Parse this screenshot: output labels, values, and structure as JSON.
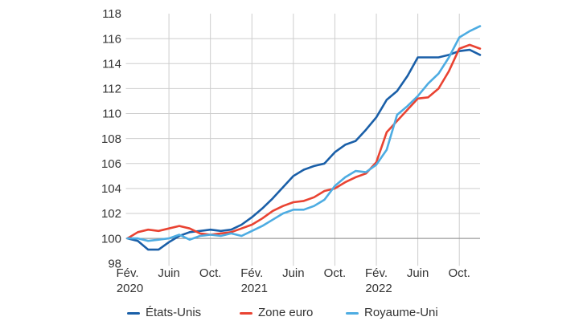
{
  "chart_data": {
    "type": "line",
    "title": "",
    "xlabel": "",
    "ylabel": "",
    "ylim": [
      98,
      118
    ],
    "y_ticks": [
      98,
      100,
      102,
      104,
      106,
      108,
      110,
      112,
      114,
      116,
      118
    ],
    "y_gridlines": [
      100,
      102,
      104,
      106,
      108,
      110,
      112,
      114,
      116
    ],
    "baseline_value": 100,
    "grid": true,
    "legend_position": "bottom",
    "x": [
      "2020-02",
      "2020-03",
      "2020-04",
      "2020-05",
      "2020-06",
      "2020-07",
      "2020-08",
      "2020-09",
      "2020-10",
      "2020-11",
      "2020-12",
      "2021-01",
      "2021-02",
      "2021-03",
      "2021-04",
      "2021-05",
      "2021-06",
      "2021-07",
      "2021-08",
      "2021-09",
      "2021-10",
      "2021-11",
      "2021-12",
      "2022-01",
      "2022-02",
      "2022-03",
      "2022-04",
      "2022-05",
      "2022-06",
      "2022-07",
      "2022-08",
      "2022-09",
      "2022-10",
      "2022-11",
      "2022-12"
    ],
    "x_ticks": [
      {
        "index": 0,
        "label": "Fév.",
        "year": "2020",
        "gridline": false
      },
      {
        "index": 4,
        "label": "Juin",
        "year": "",
        "gridline": true
      },
      {
        "index": 8,
        "label": "Oct.",
        "year": "",
        "gridline": true
      },
      {
        "index": 12,
        "label": "Fév.",
        "year": "2021",
        "gridline": true
      },
      {
        "index": 16,
        "label": "Juin",
        "year": "",
        "gridline": true
      },
      {
        "index": 20,
        "label": "Oct.",
        "year": "",
        "gridline": true
      },
      {
        "index": 24,
        "label": "Fév.",
        "year": "2022",
        "gridline": true
      },
      {
        "index": 28,
        "label": "Juin",
        "year": "",
        "gridline": true
      },
      {
        "index": 32,
        "label": "Oct.",
        "year": "",
        "gridline": true
      }
    ],
    "series": [
      {
        "name": "États-Unis",
        "color": "#1a5fa8",
        "values": [
          100.0,
          99.8,
          99.1,
          99.1,
          99.7,
          100.2,
          100.5,
          100.6,
          100.7,
          100.6,
          100.7,
          101.1,
          101.7,
          102.4,
          103.2,
          104.1,
          105.0,
          105.5,
          105.8,
          106.0,
          106.9,
          107.5,
          107.8,
          108.7,
          109.7,
          111.1,
          111.8,
          113.0,
          114.5,
          114.5,
          114.5,
          114.7,
          115.0,
          115.1,
          114.7
        ]
      },
      {
        "name": "Zone euro",
        "color": "#e94332",
        "values": [
          100.0,
          100.5,
          100.7,
          100.6,
          100.8,
          101.0,
          100.8,
          100.4,
          100.3,
          100.4,
          100.5,
          100.8,
          101.1,
          101.6,
          102.2,
          102.6,
          102.9,
          103.0,
          103.3,
          103.8,
          104.0,
          104.5,
          104.9,
          105.2,
          106.1,
          108.5,
          109.4,
          110.3,
          111.2,
          111.3,
          112.0,
          113.4,
          115.2,
          115.5,
          115.2
        ]
      },
      {
        "name": "Royaume-Uni",
        "color": "#4dace2",
        "values": [
          100.0,
          100.0,
          99.8,
          99.9,
          100.0,
          100.3,
          99.9,
          100.2,
          100.3,
          100.2,
          100.4,
          100.2,
          100.6,
          101.0,
          101.5,
          102.0,
          102.3,
          102.3,
          102.6,
          103.1,
          104.2,
          104.9,
          105.4,
          105.3,
          105.9,
          107.1,
          109.9,
          110.6,
          111.4,
          112.4,
          113.2,
          114.5,
          116.1,
          116.6,
          117.0
        ]
      }
    ]
  },
  "colors": {
    "grid": "#cdcdcd",
    "grid_strong": "#9b9b9b",
    "axis_text": "#333333",
    "background": "#ffffff"
  }
}
